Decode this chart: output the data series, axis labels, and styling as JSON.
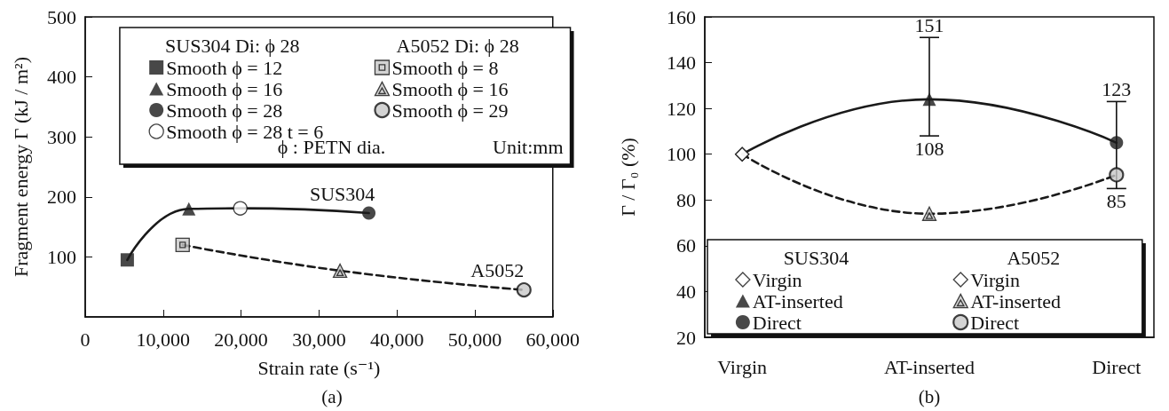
{
  "chart_data": [
    {
      "type": "line",
      "xlabel": "Strain rate (s⁻¹)",
      "ylabel": "Fragment energy Γ (kJ / m²)",
      "xlim": [
        0,
        60000
      ],
      "xticks": [
        0,
        {
          "value": 10000,
          "label": "10,000"
        },
        {
          "value": 20000,
          "label": "20,000"
        },
        {
          "value": 30000,
          "label": "30,000"
        },
        {
          "value": 40000,
          "label": "40,000"
        },
        {
          "value": 50000,
          "label": "50,000"
        },
        {
          "value": 60000,
          "label": "60,000"
        }
      ],
      "ylim": [
        0,
        500
      ],
      "yticks": [
        100,
        200,
        300,
        400,
        500
      ],
      "legend": "top",
      "annotations": [
        "SUS304 Di: ϕ 28",
        "A5052 Di: ϕ 28",
        "ϕ : PETN dia.",
        "Unit:mm",
        "(a)"
      ],
      "series": [
        {
          "name": "SUS304",
          "color": "#1a1a1a",
          "line_style": "solid",
          "marker": "none",
          "x": [
            5400,
            13300,
            19900,
            36400
          ],
          "values": [
            95,
            180,
            181,
            173
          ]
        },
        {
          "type": "scatter",
          "name": "Smooth ϕ = 12",
          "marker": "square",
          "color": "#1a1a1a",
          "x": [
            5400
          ],
          "values": [
            95
          ]
        },
        {
          "type": "scatter",
          "name": "Smooth ϕ = 16",
          "marker": "triangle",
          "color": "#1a1a1a",
          "x": [
            13300
          ],
          "values": [
            180
          ]
        },
        {
          "type": "scatter",
          "name": "Smooth ϕ = 28",
          "marker": "circle",
          "color": "#1a1a1a",
          "x": [
            36400
          ],
          "values": [
            173
          ]
        },
        {
          "type": "scatter",
          "name": "Smooth ϕ = 28 t = 6",
          "marker": "circle",
          "color": "#ffffff",
          "x": [
            19900
          ],
          "values": [
            181
          ]
        },
        {
          "name": "A5052",
          "color": "#1a1a1a",
          "line_style": "dashed",
          "marker": "none",
          "x": [
            12500,
            32700,
            56300
          ],
          "values": [
            120,
            77,
            45
          ]
        },
        {
          "type": "scatter",
          "name": "Smooth ϕ = 8",
          "marker": "square",
          "color": "#c8c8c8",
          "x": [
            12500
          ],
          "values": [
            120
          ]
        },
        {
          "type": "scatter",
          "name": "Smooth ϕ = 16",
          "marker": "triangle",
          "color": "#c8c8c8",
          "x": [
            32700
          ],
          "values": [
            77
          ]
        },
        {
          "type": "scatter",
          "name": "Smooth ϕ = 29",
          "marker": "circle",
          "color": "#c8c8c8",
          "x": [
            56300
          ],
          "values": [
            45
          ]
        }
      ]
    },
    {
      "type": "line",
      "categories": [
        "Virgin",
        "AT-inserted",
        "Direct"
      ],
      "ylabel": "Γ / Γ₀ (%)",
      "ylim": [
        20,
        160
      ],
      "yticks": [
        20,
        40,
        60,
        80,
        100,
        120,
        140,
        160
      ],
      "legend": "bottom",
      "annotations": [
        "SUS304",
        "A5052",
        "(b)",
        {
          "text": "151",
          "x": "AT-inserted",
          "y": 151
        },
        {
          "text": "108",
          "x": "AT-inserted",
          "y": 108
        },
        {
          "text": "123",
          "x": "Direct",
          "y": 123
        },
        {
          "text": "85",
          "x": "Direct",
          "y": 85
        }
      ],
      "series": [
        {
          "color": "#1a1a1a",
          "line_style": "solid",
          "marker": "none",
          "values": [
            100,
            124,
            105
          ]
        },
        {
          "type": "scatter",
          "name": "Virgin",
          "marker": "diamond",
          "color": "#ffffff",
          "values": [
            100,
            null,
            null
          ]
        },
        {
          "type": "scatter",
          "name": "AT-inserted",
          "marker": "triangle",
          "color": "#1a1a1a",
          "values": [
            null,
            124,
            null
          ],
          "errors": [
            null,
            [
              108,
              151
            ],
            null
          ]
        },
        {
          "type": "scatter",
          "name": "Direct",
          "marker": "circle",
          "color": "#1a1a1a",
          "values": [
            null,
            null,
            105
          ],
          "errors": [
            null,
            null,
            [
              85,
              123
            ]
          ]
        },
        {
          "color": "#1a1a1a",
          "line_style": "dashed",
          "marker": "none",
          "values": [
            100,
            74,
            91
          ]
        },
        {
          "type": "scatter",
          "name": "Virgin",
          "marker": "diamond",
          "color": "#ffffff",
          "values": [
            100,
            null,
            null
          ]
        },
        {
          "type": "scatter",
          "name": "AT-inserted",
          "marker": "triangle",
          "color": "#c8c8c8",
          "values": [
            null,
            74,
            null
          ]
        },
        {
          "type": "scatter",
          "name": "Direct",
          "marker": "circle",
          "color": "#c8c8c8",
          "values": [
            null,
            null,
            91
          ]
        }
      ]
    }
  ]
}
